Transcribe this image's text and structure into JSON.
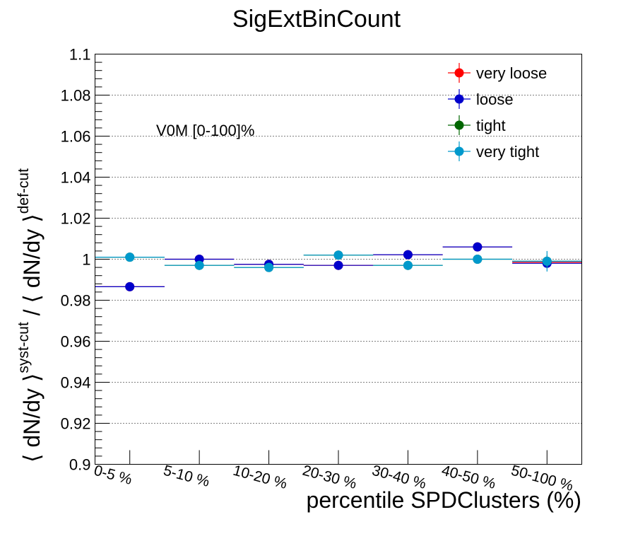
{
  "chart_data": {
    "type": "scatter",
    "title": "SigExtBinCount",
    "xlabel": "percentile SPDClusters (%)",
    "ylabel": {
      "part1": "⟨ dN/dy ⟩",
      "sup1": "syst-cut",
      "part2": " / ⟨ dN/dy ⟩",
      "sup2": "def-cut"
    },
    "annotation": "V0M [0-100]%",
    "categories": [
      "0-5 %",
      "5-10 %",
      "10-20 %",
      "20-30 %",
      "30-40 %",
      "40-50 %",
      "50-100 %"
    ],
    "ylim": [
      0.9,
      1.1
    ],
    "yticks": [
      "0.9",
      "0.92",
      "0.94",
      "0.96",
      "0.98",
      "1",
      "1.02",
      "1.04",
      "1.06",
      "1.08",
      "1.1"
    ],
    "grid": "horizontal dotted",
    "legend_position": "top-right",
    "series": [
      {
        "name": "very loose",
        "color": "#ff0000",
        "values": [
          0.9866,
          1.0,
          0.9975,
          0.997,
          1.0022,
          1.006,
          0.9985
        ],
        "errors": [
          0.0002,
          0.0002,
          0.0002,
          0.0002,
          0.0015,
          0.0015,
          0.003
        ]
      },
      {
        "name": "loose",
        "color": "#0000cc",
        "values": [
          0.9866,
          1.0,
          0.9975,
          0.997,
          1.0022,
          1.006,
          0.998
        ],
        "errors": [
          0.0002,
          0.0002,
          0.0002,
          0.0002,
          0.0012,
          0.0012,
          0.002
        ]
      },
      {
        "name": "tight",
        "color": "#006600",
        "values": [
          1.001,
          0.997,
          0.996,
          1.002,
          0.997,
          1.0,
          0.999
        ],
        "errors": [
          0.0002,
          0.0002,
          0.0002,
          0.0002,
          0.0012,
          0.0015,
          0.003
        ]
      },
      {
        "name": "very tight",
        "color": "#0099cc",
        "values": [
          1.001,
          0.997,
          0.996,
          1.002,
          0.997,
          1.0,
          0.999
        ],
        "errors": [
          0.0002,
          0.0002,
          0.0002,
          0.0002,
          0.0012,
          0.0015,
          0.005
        ]
      }
    ]
  }
}
